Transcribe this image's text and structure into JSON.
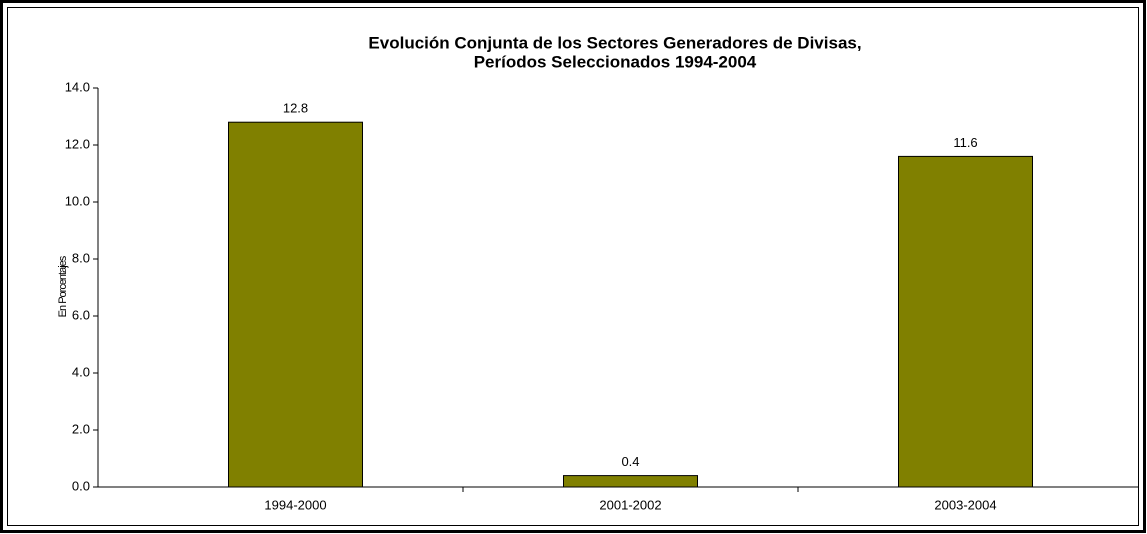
{
  "chart_data": {
    "type": "bar",
    "title": [
      "Evolución Conjunta de los Sectores Generadores de Divisas,",
      "Períodos Seleccionados 1994-2004"
    ],
    "y_label": "En Porcentajes",
    "categories": [
      "1994-2000",
      "2001-2002",
      "2003-2004"
    ],
    "values": [
      12.8,
      0.4,
      11.6
    ],
    "color": "#808000",
    "ylim": [
      0,
      14
    ],
    "yticks": [
      {
        "value": 0,
        "label": "0.0"
      },
      {
        "value": 2,
        "label": "2.0"
      },
      {
        "value": 4,
        "label": "4.0"
      },
      {
        "value": 6,
        "label": "6.0"
      },
      {
        "value": 8,
        "label": "8.0"
      },
      {
        "value": 10,
        "label": "10.0"
      },
      {
        "value": 12,
        "label": "12.0"
      },
      {
        "value": 14,
        "label": "14.0"
      }
    ],
    "grid": false
  }
}
